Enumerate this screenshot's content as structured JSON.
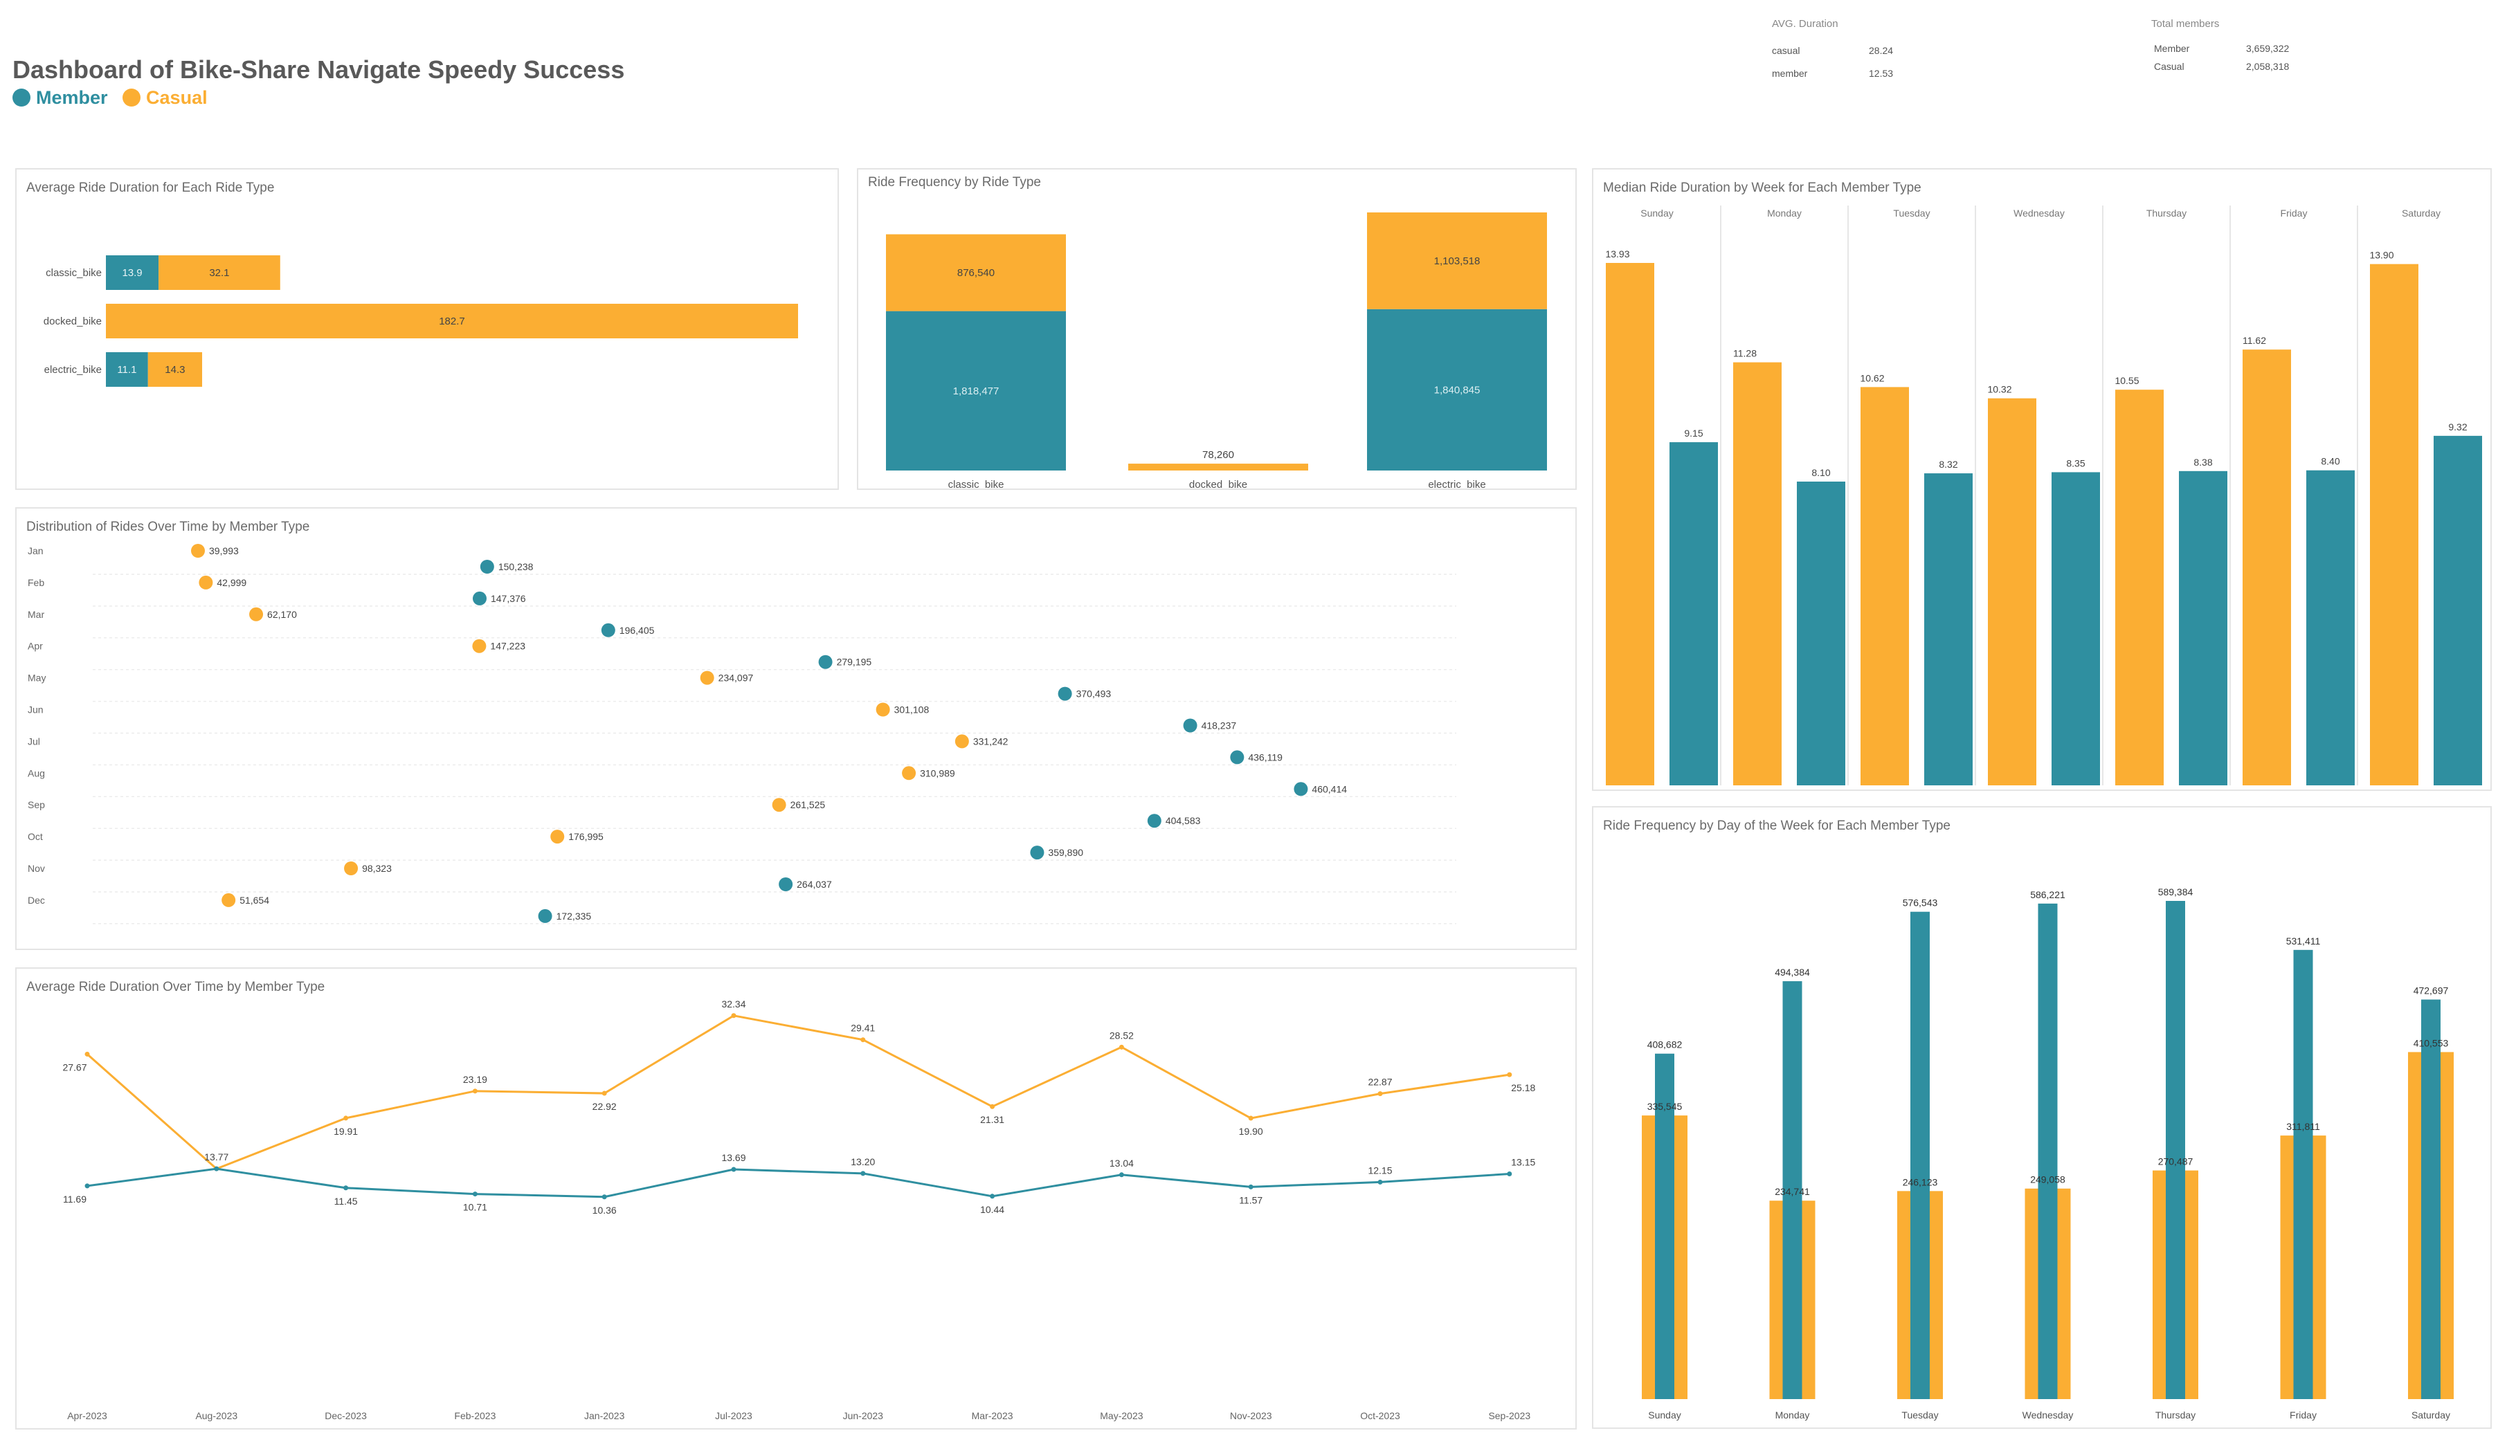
{
  "header": {
    "title": "Dashboard of Bike-Share Navigate Speedy Success",
    "legend_member": "Member",
    "legend_casual": "Casual"
  },
  "colors": {
    "member": "#2f8fa0",
    "casual": "#fbae33"
  },
  "kpis": {
    "avg_title": "AVG. Duration",
    "avg_rows": [
      {
        "label": "casual",
        "value": "28.24"
      },
      {
        "label": "member",
        "value": "12.53"
      }
    ],
    "total_title": "Total members",
    "total_rows": [
      {
        "label": "Member",
        "value": "3,659,322"
      },
      {
        "label": "Casual",
        "value": "2,058,318"
      }
    ]
  },
  "panels": {
    "avg_duration_ride_type": "Average Ride Duration for Each Ride Type",
    "freq_ride_type": "Ride Frequency by Ride Type",
    "median_week": "Median Ride Duration by Week for Each Member Type",
    "dist_time": "Distribution of Rides Over Time by Member Type",
    "freq_dow": "Ride Frequency by Day of the Week for Each Member Type",
    "avg_time": "Average Ride Duration Over Time by Member Type"
  },
  "chart_data": [
    {
      "id": "avg_duration_ride_type",
      "type": "bar",
      "orientation": "horizontal",
      "stacked": true,
      "title": "Average Ride Duration for Each Ride Type",
      "categories": [
        "classic_bike",
        "docked_bike",
        "electric_bike"
      ],
      "series": [
        {
          "name": "Member",
          "values": [
            13.9,
            null,
            11.1
          ]
        },
        {
          "name": "Casual",
          "values": [
            32.1,
            182.7,
            14.3
          ]
        }
      ]
    },
    {
      "id": "freq_ride_type",
      "type": "bar",
      "stacked": true,
      "title": "Ride Frequency by Ride Type",
      "categories": [
        "classic_bike",
        "docked_bike",
        "electric_bike"
      ],
      "series": [
        {
          "name": "Member",
          "values": [
            1818477,
            0,
            1840845
          ],
          "labels": [
            "1,818,477",
            "",
            "1,840,845"
          ]
        },
        {
          "name": "Casual",
          "values": [
            876540,
            78260,
            1103518
          ],
          "labels": [
            "876,540",
            "78,260",
            "1,103,518"
          ]
        }
      ]
    },
    {
      "id": "median_week",
      "type": "bar",
      "title": "Median Ride Duration by Week for Each Member Type",
      "categories": [
        "Sunday",
        "Monday",
        "Tuesday",
        "Wednesday",
        "Thursday",
        "Friday",
        "Saturday"
      ],
      "series": [
        {
          "name": "Casual",
          "values": [
            13.93,
            11.28,
            10.62,
            10.32,
            10.55,
            11.62,
            13.9
          ],
          "labels": [
            "13.93",
            "11.28",
            "10.62",
            "10.32",
            "10.55",
            "11.62",
            "13.90"
          ]
        },
        {
          "name": "Member",
          "values": [
            9.15,
            8.1,
            8.32,
            8.35,
            8.38,
            8.4,
            9.32
          ],
          "labels": [
            "9.15",
            "8.10",
            "8.32",
            "8.35",
            "8.38",
            "8.40",
            "9.32"
          ]
        }
      ]
    },
    {
      "id": "dist_time",
      "type": "scatter",
      "title": "Distribution of Rides Over Time by Member Type",
      "categories": [
        "Jan",
        "Feb",
        "Mar",
        "Apr",
        "May",
        "Jun",
        "Jul",
        "Aug",
        "Sep",
        "Oct",
        "Nov",
        "Dec"
      ],
      "series": [
        {
          "name": "Casual",
          "values": [
            39993,
            42999,
            62170,
            147223,
            234097,
            301108,
            331242,
            310989,
            261525,
            176995,
            98323,
            51654
          ],
          "labels": [
            "39,993",
            "42,999",
            "62,170",
            "147,223",
            "234,097",
            "301,108",
            "331,242",
            "310,989",
            "261,525",
            "176,995",
            "98,323",
            "51,654"
          ]
        },
        {
          "name": "Member",
          "values": [
            150238,
            147376,
            196405,
            279195,
            370493,
            418237,
            436119,
            460414,
            404583,
            359890,
            264037,
            172335
          ],
          "labels": [
            "150,238",
            "147,376",
            "196,405",
            "279,195",
            "370,493",
            "418,237",
            "436,119",
            "460,414",
            "404,583",
            "359,890",
            "264,037",
            "172,335"
          ]
        }
      ]
    },
    {
      "id": "freq_dow",
      "type": "bar",
      "title": "Ride Frequency by Day of the Week for Each Member Type",
      "categories": [
        "Sunday",
        "Monday",
        "Tuesday",
        "Wednesday",
        "Thursday",
        "Friday",
        "Saturday"
      ],
      "series": [
        {
          "name": "Casual",
          "values": [
            335545,
            234741,
            246123,
            249058,
            270487,
            311811,
            410553
          ],
          "labels": [
            "335,545",
            "234,741",
            "246,123",
            "249,058",
            "270,487",
            "311,811",
            "410,553"
          ]
        },
        {
          "name": "Member",
          "values": [
            408682,
            494384,
            576543,
            586221,
            589384,
            531411,
            472697
          ],
          "labels": [
            "408,682",
            "494,384",
            "576,543",
            "586,221",
            "589,384",
            "531,411",
            "472,697"
          ]
        }
      ]
    },
    {
      "id": "avg_time",
      "type": "line",
      "title": "Average Ride Duration Over Time by Member Type",
      "categories": [
        "Apr-2023",
        "Aug-2023",
        "Dec-2023",
        "Feb-2023",
        "Jan-2023",
        "Jul-2023",
        "Jun-2023",
        "Mar-2023",
        "May-2023",
        "Nov-2023",
        "Oct-2023",
        "Sep-2023"
      ],
      "series": [
        {
          "name": "Member",
          "values": [
            11.69,
            13.77,
            11.45,
            10.71,
            10.36,
            13.69,
            13.2,
            10.44,
            13.04,
            11.57,
            12.15,
            13.15
          ],
          "labels": [
            "11.69",
            "13.77",
            "11.45",
            "10.71",
            "10.36",
            "13.69",
            "13.20",
            "10.44",
            "13.04",
            "11.57",
            "12.15",
            "13.15"
          ]
        },
        {
          "name": "Casual",
          "values": [
            27.67,
            null,
            19.91,
            23.19,
            22.92,
            32.34,
            29.41,
            21.31,
            28.52,
            19.9,
            22.87,
            25.18
          ],
          "labels": [
            "27.67",
            "",
            "19.91",
            "23.19",
            "22.92",
            "32.34",
            "29.41",
            "21.31",
            "28.52",
            "19.90",
            "22.87",
            "25.18"
          ]
        }
      ]
    }
  ]
}
